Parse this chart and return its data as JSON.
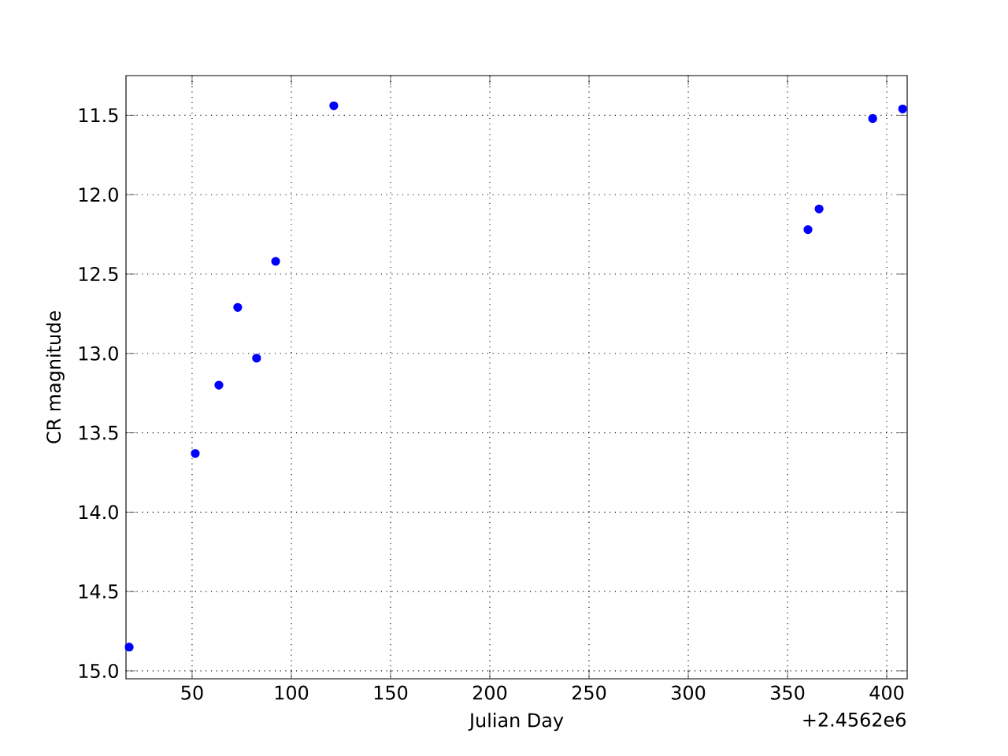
{
  "chart_data": {
    "type": "scatter",
    "xlabel": "Julian Day",
    "ylabel": "CR magnitude",
    "annotations": [
      "+2.4562e6"
    ],
    "x": [
      18.3,
      51.6,
      63.5,
      73.0,
      82.5,
      92.1,
      121.4,
      360.3,
      365.9,
      392.9,
      408.0
    ],
    "series": [
      {
        "color": "#0000ff",
        "values": [
          14.85,
          13.63,
          13.2,
          12.71,
          13.03,
          12.42,
          11.44,
          12.22,
          12.09,
          11.52,
          11.46
        ]
      }
    ],
    "xlim": [
      16.7,
      410.3
    ],
    "ylim": [
      15.05,
      11.25
    ],
    "xticks": [
      50,
      100,
      150,
      200,
      250,
      300,
      350,
      400
    ],
    "yticks": [
      11.5,
      {
        "value": 12.0,
        "label": "12.0"
      },
      12.5,
      {
        "value": 13.0,
        "label": "13.0"
      },
      13.5,
      {
        "value": 14.0,
        "label": "14.0"
      },
      14.5,
      {
        "value": 15.0,
        "label": "15.0"
      }
    ],
    "grid": true,
    "marker": "circle"
  }
}
